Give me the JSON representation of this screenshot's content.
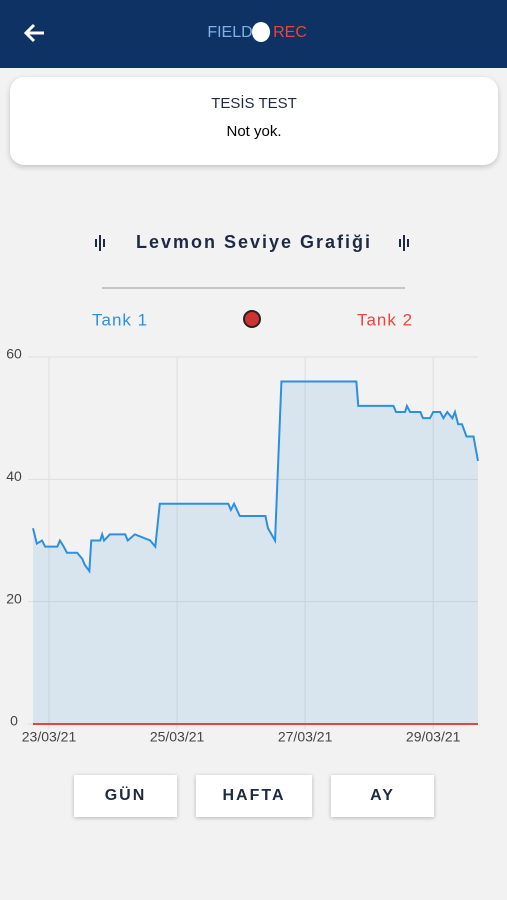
{
  "app_bar": {
    "logo_left": "FIELD",
    "logo_right": "REC"
  },
  "card": {
    "title": "TESİS TEST",
    "text": "Not yok."
  },
  "chart_data": {
    "type": "line",
    "title": "Levmon Seviye Grafiği",
    "xlim": [
      22.75,
      29.7
    ],
    "xticks": [
      {
        "value": 23,
        "label": "23/03/21"
      },
      {
        "value": 25,
        "label": "25/03/21"
      },
      {
        "value": 27,
        "label": "27/03/21"
      },
      {
        "value": 29,
        "label": "29/03/21"
      }
    ],
    "ylim": [
      0,
      60
    ],
    "yticks": [
      0,
      20,
      40,
      60
    ],
    "grid": true,
    "series": [
      {
        "name": "Tank 1",
        "color": "#2d8fe0",
        "fill": true,
        "x": [
          22.75,
          22.81,
          22.89,
          22.94,
          23.13,
          23.17,
          23.23,
          23.28,
          23.44,
          23.52,
          23.56,
          23.63,
          23.66,
          23.8,
          23.83,
          23.86,
          23.95,
          24.19,
          24.23,
          24.34,
          24.58,
          24.66,
          24.73,
          25.8,
          25.84,
          25.89,
          25.98,
          26.38,
          26.42,
          26.53,
          26.63,
          27.8,
          27.83,
          28.38,
          28.42,
          28.56,
          28.59,
          28.64,
          28.8,
          28.84,
          28.95,
          29.0,
          29.11,
          29.16,
          29.22,
          29.3,
          29.34,
          29.39,
          29.45,
          29.52,
          29.63,
          29.7
        ],
        "values": [
          32,
          29.5,
          30,
          29,
          29,
          30,
          29,
          28,
          28,
          27,
          26,
          25,
          30,
          30,
          31,
          30,
          31,
          31,
          30,
          31,
          30,
          29,
          36,
          36,
          35,
          36,
          34,
          34,
          32,
          30,
          56,
          56,
          52,
          52,
          51,
          51,
          52,
          51,
          51,
          50,
          50,
          51,
          51,
          50,
          51,
          50,
          51,
          49,
          49,
          47,
          47,
          43
        ]
      },
      {
        "name": "Tank 2",
        "color": "#e8453c",
        "fill": false,
        "x": [
          22.75,
          29.7
        ],
        "values": [
          0,
          0
        ]
      }
    ]
  },
  "buttons": [
    "GÜN",
    "HAFTA",
    "AY"
  ]
}
